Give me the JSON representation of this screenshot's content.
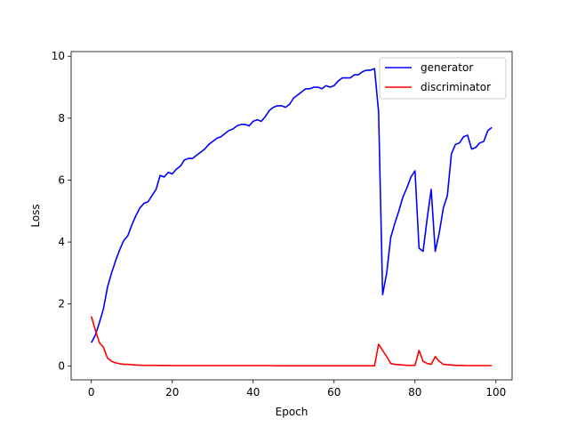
{
  "chart_data": {
    "type": "line",
    "title": "",
    "xlabel": "Epoch",
    "ylabel": "Loss",
    "xlim": [
      -5,
      104
    ],
    "ylim": [
      -0.45,
      10.15
    ],
    "xticks": [
      0,
      20,
      40,
      60,
      80,
      100
    ],
    "yticks": [
      0,
      2,
      4,
      6,
      8,
      10
    ],
    "grid": false,
    "legend_position": "top-right",
    "x": [
      0,
      1,
      2,
      3,
      4,
      5,
      6,
      7,
      8,
      9,
      10,
      11,
      12,
      13,
      14,
      15,
      16,
      17,
      18,
      19,
      20,
      21,
      22,
      23,
      24,
      25,
      26,
      27,
      28,
      29,
      30,
      31,
      32,
      33,
      34,
      35,
      36,
      37,
      38,
      39,
      40,
      41,
      42,
      43,
      44,
      45,
      46,
      47,
      48,
      49,
      50,
      51,
      52,
      53,
      54,
      55,
      56,
      57,
      58,
      59,
      60,
      61,
      62,
      63,
      64,
      65,
      66,
      67,
      68,
      69,
      70,
      71,
      72,
      73,
      74,
      75,
      76,
      77,
      78,
      79,
      80,
      81,
      82,
      83,
      84,
      85,
      86,
      87,
      88,
      89,
      90,
      91,
      92,
      93,
      94,
      95,
      96,
      97,
      98,
      99
    ],
    "series": [
      {
        "name": "generator",
        "color": "#0000ff",
        "values": [
          0.75,
          1.0,
          1.4,
          1.85,
          2.55,
          3.0,
          3.4,
          3.75,
          4.05,
          4.2,
          4.55,
          4.85,
          5.1,
          5.25,
          5.3,
          5.5,
          5.7,
          6.15,
          6.1,
          6.25,
          6.2,
          6.35,
          6.45,
          6.65,
          6.7,
          6.7,
          6.8,
          6.9,
          7.0,
          7.15,
          7.25,
          7.35,
          7.4,
          7.5,
          7.6,
          7.65,
          7.75,
          7.8,
          7.8,
          7.75,
          7.9,
          7.95,
          7.9,
          8.05,
          8.25,
          8.35,
          8.4,
          8.4,
          8.35,
          8.45,
          8.65,
          8.75,
          8.85,
          8.95,
          8.95,
          9.0,
          9.0,
          8.95,
          9.05,
          9.0,
          9.05,
          9.2,
          9.3,
          9.3,
          9.3,
          9.4,
          9.4,
          9.5,
          9.55,
          9.55,
          9.6,
          8.2,
          2.3,
          3.0,
          4.15,
          4.6,
          5.0,
          5.45,
          5.75,
          6.1,
          6.3,
          3.8,
          3.7,
          4.75,
          5.7,
          3.7,
          4.3,
          5.1,
          5.5,
          6.85,
          7.15,
          7.2,
          7.4,
          7.45,
          7.0,
          7.05,
          7.2,
          7.25,
          7.6,
          7.7
        ]
      },
      {
        "name": "discriminator",
        "color": "#ff0000",
        "values": [
          1.6,
          1.15,
          0.75,
          0.6,
          0.25,
          0.15,
          0.1,
          0.07,
          0.05,
          0.05,
          0.04,
          0.03,
          0.025,
          0.02,
          0.02,
          0.02,
          0.02,
          0.015,
          0.015,
          0.015,
          0.01,
          0.01,
          0.01,
          0.01,
          0.01,
          0.01,
          0.01,
          0.01,
          0.01,
          0.01,
          0.01,
          0.01,
          0.01,
          0.01,
          0.01,
          0.01,
          0.01,
          0.01,
          0.01,
          0.01,
          0.01,
          0.01,
          0.01,
          0.01,
          0.01,
          0.01,
          0.005,
          0.005,
          0.005,
          0.005,
          0.005,
          0.005,
          0.005,
          0.005,
          0.005,
          0.005,
          0.005,
          0.005,
          0.005,
          0.005,
          0.005,
          0.005,
          0.005,
          0.005,
          0.005,
          0.005,
          0.005,
          0.005,
          0.005,
          0.005,
          0.005,
          0.7,
          0.5,
          0.3,
          0.08,
          0.05,
          0.04,
          0.03,
          0.02,
          0.02,
          0.02,
          0.5,
          0.15,
          0.08,
          0.05,
          0.3,
          0.15,
          0.05,
          0.04,
          0.03,
          0.02,
          0.02,
          0.015,
          0.01,
          0.01,
          0.01,
          0.01,
          0.01,
          0.01,
          0.01
        ]
      }
    ]
  }
}
